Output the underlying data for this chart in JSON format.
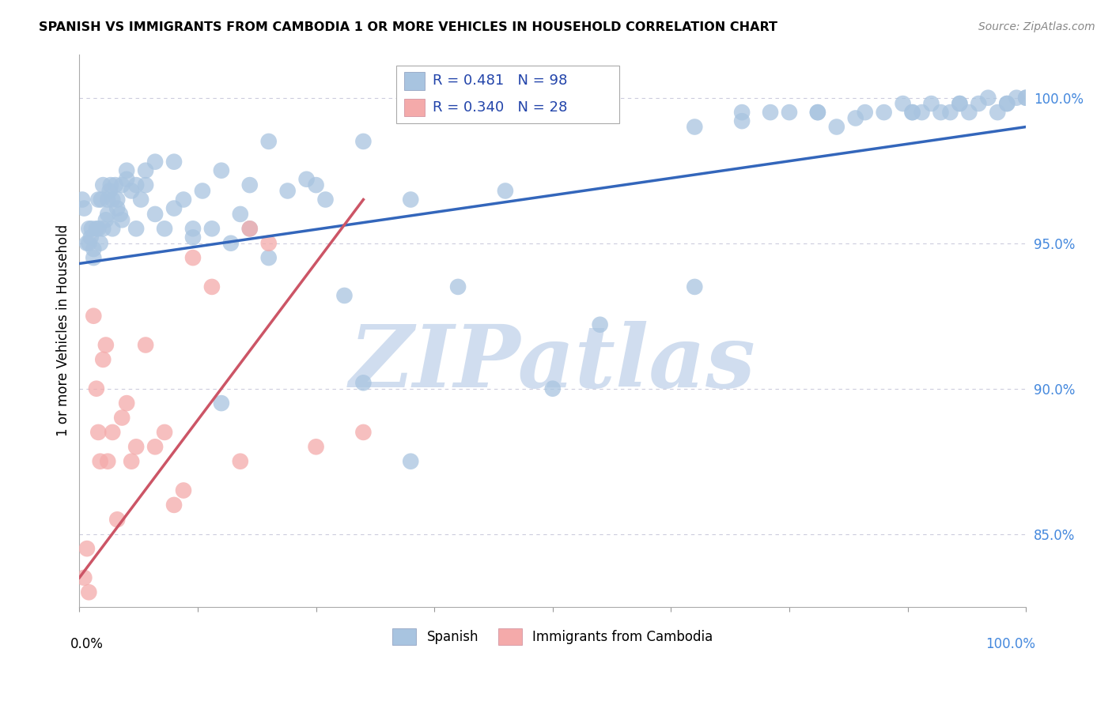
{
  "title": "SPANISH VS IMMIGRANTS FROM CAMBODIA 1 OR MORE VEHICLES IN HOUSEHOLD CORRELATION CHART",
  "source": "Source: ZipAtlas.com",
  "ylabel": "1 or more Vehicles in Household",
  "legend_blue_r": "R = 0.481",
  "legend_blue_n": "N = 98",
  "legend_pink_r": "R = 0.340",
  "legend_pink_n": "N = 28",
  "legend_label_blue": "Spanish",
  "legend_label_pink": "Immigrants from Cambodia",
  "blue_scatter_x": [
    0.5,
    0.8,
    1.0,
    1.2,
    1.5,
    1.8,
    2.0,
    2.2,
    2.5,
    2.8,
    3.0,
    3.2,
    3.5,
    3.8,
    4.0,
    4.5,
    5.0,
    5.5,
    6.0,
    6.5,
    7.0,
    8.0,
    9.0,
    10.0,
    11.0,
    12.0,
    13.0,
    14.0,
    15.0,
    16.0,
    17.0,
    18.0,
    20.0,
    22.0,
    24.0,
    26.0,
    28.0,
    30.0,
    35.0,
    40.0,
    45.0,
    50.0,
    55.0,
    65.0,
    70.0,
    75.0,
    78.0,
    80.0,
    82.0,
    85.0,
    87.0,
    88.0,
    89.0,
    90.0,
    91.0,
    92.0,
    93.0,
    94.0,
    95.0,
    96.0,
    97.0,
    98.0,
    99.0,
    100.0,
    0.3,
    1.0,
    1.5,
    2.0,
    2.5,
    3.0,
    3.5,
    4.0,
    4.5,
    5.0,
    6.0,
    7.0,
    8.0,
    10.0,
    12.0,
    15.0,
    18.0,
    20.0,
    25.0,
    30.0,
    35.0,
    65.0,
    70.0,
    73.0,
    78.0,
    83.0,
    88.0,
    93.0,
    98.0,
    100.0,
    1.3,
    2.3,
    3.3,
    4.3
  ],
  "blue_scatter_y": [
    96.2,
    95.0,
    95.5,
    95.2,
    94.8,
    95.5,
    96.5,
    95.0,
    95.5,
    95.8,
    96.0,
    96.8,
    96.5,
    97.0,
    96.2,
    95.8,
    97.2,
    96.8,
    97.0,
    96.5,
    97.5,
    96.0,
    95.5,
    97.8,
    96.5,
    95.2,
    96.8,
    95.5,
    89.5,
    95.0,
    96.0,
    95.5,
    94.5,
    96.8,
    97.2,
    96.5,
    93.2,
    90.2,
    87.5,
    93.5,
    96.8,
    90.0,
    92.2,
    93.5,
    99.2,
    99.5,
    99.5,
    99.0,
    99.3,
    99.5,
    99.8,
    99.5,
    99.5,
    99.8,
    99.5,
    99.5,
    99.8,
    99.5,
    99.8,
    100.0,
    99.5,
    99.8,
    100.0,
    100.0,
    96.5,
    95.0,
    94.5,
    95.5,
    97.0,
    96.5,
    95.5,
    96.5,
    97.0,
    97.5,
    95.5,
    97.0,
    97.8,
    96.2,
    95.5,
    97.5,
    97.0,
    98.5,
    97.0,
    98.5,
    96.5,
    99.0,
    99.5,
    99.5,
    99.5,
    99.5,
    99.5,
    99.8,
    99.8,
    100.0,
    95.5,
    96.5,
    97.0,
    96.0
  ],
  "pink_scatter_x": [
    0.5,
    0.8,
    1.0,
    1.5,
    1.8,
    2.0,
    2.2,
    2.5,
    2.8,
    3.0,
    3.5,
    4.0,
    4.5,
    5.0,
    5.5,
    6.0,
    7.0,
    8.0,
    9.0,
    10.0,
    11.0,
    12.0,
    14.0,
    17.0,
    18.0,
    20.0,
    25.0,
    30.0
  ],
  "pink_scatter_y": [
    83.5,
    84.5,
    83.0,
    92.5,
    90.0,
    88.5,
    87.5,
    91.0,
    91.5,
    87.5,
    88.5,
    85.5,
    89.0,
    89.5,
    87.5,
    88.0,
    91.5,
    88.0,
    88.5,
    86.0,
    86.5,
    94.5,
    93.5,
    87.5,
    95.5,
    95.0,
    88.0,
    88.5
  ],
  "blue_line_x": [
    0,
    100
  ],
  "blue_line_y": [
    94.3,
    99.0
  ],
  "pink_line_x": [
    0,
    30
  ],
  "pink_line_y": [
    83.5,
    96.5
  ],
  "blue_color": "#A8C4E0",
  "pink_color": "#F4AAAA",
  "blue_line_color": "#3366BB",
  "pink_line_color": "#CC5566",
  "grid_color": "#CCCCDD",
  "watermark": "ZIPatlas",
  "watermark_color": "#D0DDEF",
  "background_color": "#FFFFFF",
  "xlim": [
    0,
    100
  ],
  "ylim": [
    82.5,
    101.5
  ],
  "ytick_vals": [
    85.0,
    90.0,
    95.0,
    100.0
  ],
  "ytick_labels": [
    "85.0%",
    "90.0%",
    "95.0%",
    "100.0%"
  ],
  "xaxis_pct_left": "0.0%",
  "xaxis_pct_right": "100.0%"
}
